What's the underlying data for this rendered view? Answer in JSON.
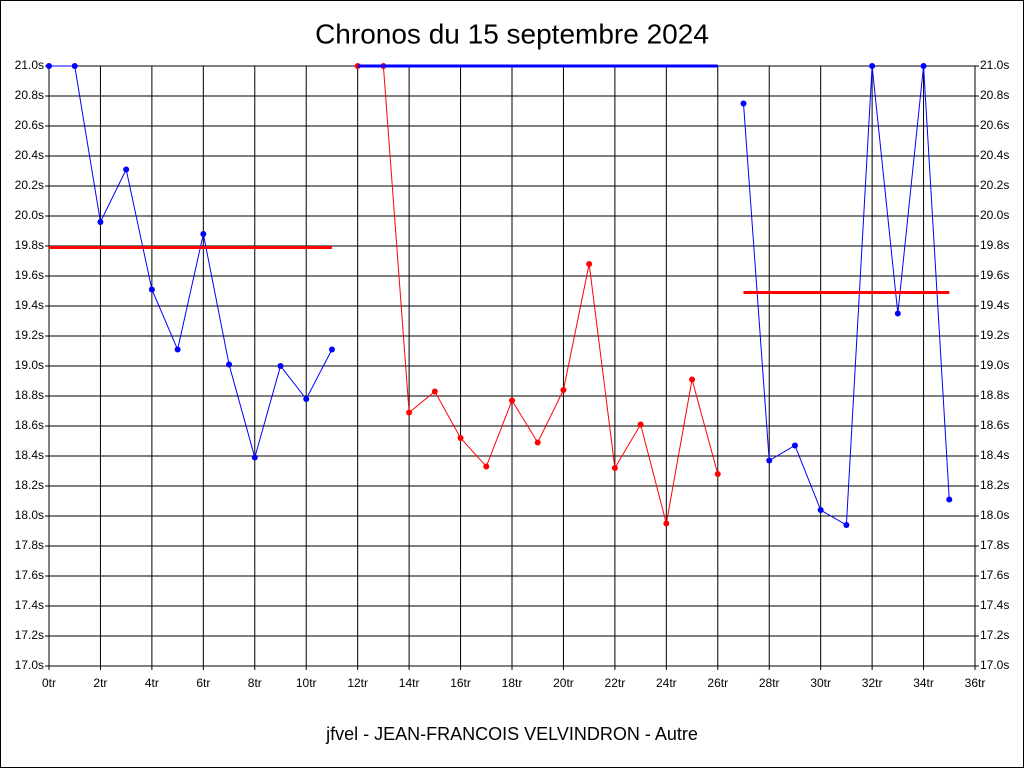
{
  "chart_data": {
    "type": "line",
    "title": "Chronos du 15 septembre 2024",
    "footer": "jfvel - JEAN-FRANCOIS VELVINDRON - Autre",
    "x": [
      0,
      1,
      2,
      3,
      4,
      5,
      6,
      7,
      8,
      9,
      10,
      11,
      12,
      13,
      14,
      15,
      16,
      17,
      18,
      19,
      20,
      21,
      22,
      23,
      24,
      25,
      26,
      27,
      28,
      29,
      30,
      31,
      32,
      33,
      34,
      35
    ],
    "series": [
      {
        "color": "#0000ff",
        "values": [
          21.0,
          21.0,
          19.96,
          20.31,
          19.51,
          19.11,
          19.88,
          19.01,
          18.39,
          19.0,
          18.78,
          19.11,
          null,
          null,
          null,
          null,
          null,
          null,
          null,
          null,
          null,
          null,
          null,
          null,
          null,
          null,
          null,
          null,
          null,
          null,
          null,
          null,
          null,
          null,
          null,
          null
        ]
      },
      {
        "color": "#ff0000",
        "values": [
          null,
          null,
          null,
          null,
          null,
          null,
          null,
          null,
          null,
          null,
          null,
          null,
          21.0,
          21.0,
          18.69,
          18.83,
          18.52,
          18.33,
          18.77,
          18.49,
          18.84,
          19.68,
          18.32,
          18.61,
          17.95,
          18.91,
          18.28,
          null,
          null,
          null,
          null,
          null,
          null,
          null,
          null,
          null
        ]
      },
      {
        "color": "#0000ff",
        "values": [
          null,
          null,
          null,
          null,
          null,
          null,
          null,
          null,
          null,
          null,
          null,
          null,
          null,
          null,
          null,
          null,
          null,
          null,
          null,
          null,
          null,
          null,
          null,
          null,
          null,
          null,
          null,
          20.75,
          18.37,
          18.47,
          18.04,
          17.94,
          21.0,
          19.35,
          21.0,
          18.11
        ]
      }
    ],
    "mean_lines": [
      {
        "color": "#ff0000",
        "x": [
          0,
          11
        ],
        "value": 19.79
      },
      {
        "color": "#0000ff",
        "x": [
          12,
          26
        ],
        "value": 21.0
      },
      {
        "color": "#ff0000",
        "x": [
          27,
          35
        ],
        "value": 19.49
      }
    ],
    "xlim": [
      0,
      36
    ],
    "ylim": [
      17.0,
      21.0
    ],
    "xticks": [
      {
        "value": 0,
        "label": "0tr"
      },
      {
        "value": 2,
        "label": "2tr"
      },
      {
        "value": 4,
        "label": "4tr"
      },
      {
        "value": 6,
        "label": "6tr"
      },
      {
        "value": 8,
        "label": "8tr"
      },
      {
        "value": 10,
        "label": "10tr"
      },
      {
        "value": 12,
        "label": "12tr"
      },
      {
        "value": 14,
        "label": "14tr"
      },
      {
        "value": 16,
        "label": "16tr"
      },
      {
        "value": 18,
        "label": "18tr"
      },
      {
        "value": 20,
        "label": "20tr"
      },
      {
        "value": 22,
        "label": "22tr"
      },
      {
        "value": 24,
        "label": "24tr"
      },
      {
        "value": 26,
        "label": "26tr"
      },
      {
        "value": 28,
        "label": "28tr"
      },
      {
        "value": 30,
        "label": "30tr"
      },
      {
        "value": 32,
        "label": "32tr"
      },
      {
        "value": 34,
        "label": "34tr"
      },
      {
        "value": 36,
        "label": "36tr"
      }
    ],
    "yticks": [
      {
        "value": 17.0,
        "label": "17.0s"
      },
      {
        "value": 17.2,
        "label": "17.2s"
      },
      {
        "value": 17.4,
        "label": "17.4s"
      },
      {
        "value": 17.6,
        "label": "17.6s"
      },
      {
        "value": 17.8,
        "label": "17.8s"
      },
      {
        "value": 18.0,
        "label": "18.0s"
      },
      {
        "value": 18.2,
        "label": "18.2s"
      },
      {
        "value": 18.4,
        "label": "18.4s"
      },
      {
        "value": 18.6,
        "label": "18.6s"
      },
      {
        "value": 18.8,
        "label": "18.8s"
      },
      {
        "value": 19.0,
        "label": "19.0s"
      },
      {
        "value": 19.2,
        "label": "19.2s"
      },
      {
        "value": 19.4,
        "label": "19.4s"
      },
      {
        "value": 19.6,
        "label": "19.6s"
      },
      {
        "value": 19.8,
        "label": "19.8s"
      },
      {
        "value": 20.0,
        "label": "20.0s"
      },
      {
        "value": 20.2,
        "label": "20.2s"
      },
      {
        "value": 20.4,
        "label": "20.4s"
      },
      {
        "value": 20.6,
        "label": "20.6s"
      },
      {
        "value": 20.8,
        "label": "20.8s"
      },
      {
        "value": 21.0,
        "label": "21.0s"
      }
    ],
    "grid": true
  }
}
